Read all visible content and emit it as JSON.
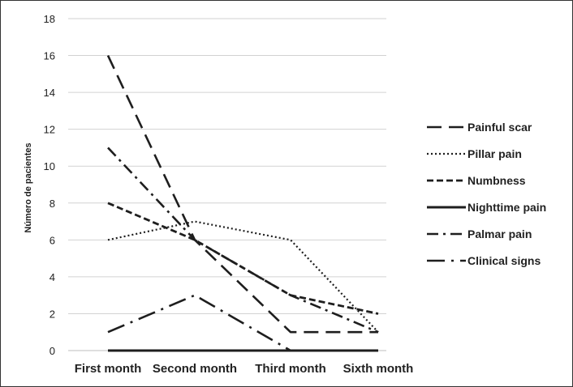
{
  "chart_data": {
    "type": "line",
    "title": "",
    "xlabel": "",
    "ylabel": "Número de pacientes",
    "categories": [
      "First month",
      "Second month",
      "Third month",
      "Sixth month"
    ],
    "ylim": [
      0,
      18
    ],
    "yticks": [
      0,
      2,
      4,
      6,
      8,
      10,
      12,
      14,
      16,
      18
    ],
    "grid": true,
    "legend_position": "right",
    "series": [
      {
        "name": "Painful scar",
        "values": [
          16,
          6,
          1,
          1
        ],
        "dash": "dashed-long"
      },
      {
        "name": "Pillar pain",
        "values": [
          6,
          7,
          6,
          1
        ],
        "dash": "dotted"
      },
      {
        "name": "Numbness",
        "values": [
          8,
          6,
          3,
          2
        ],
        "dash": "dashed-short"
      },
      {
        "name": "Nighttime pain",
        "values": [
          0,
          0,
          0,
          0
        ],
        "dash": "solid"
      },
      {
        "name": "Palmar pain",
        "values": [
          11,
          6,
          3,
          1
        ],
        "dash": "dash-dot"
      },
      {
        "name": "Clinical signs",
        "values": [
          1,
          3,
          0,
          null
        ],
        "dash": "long-dash-dot"
      }
    ]
  }
}
